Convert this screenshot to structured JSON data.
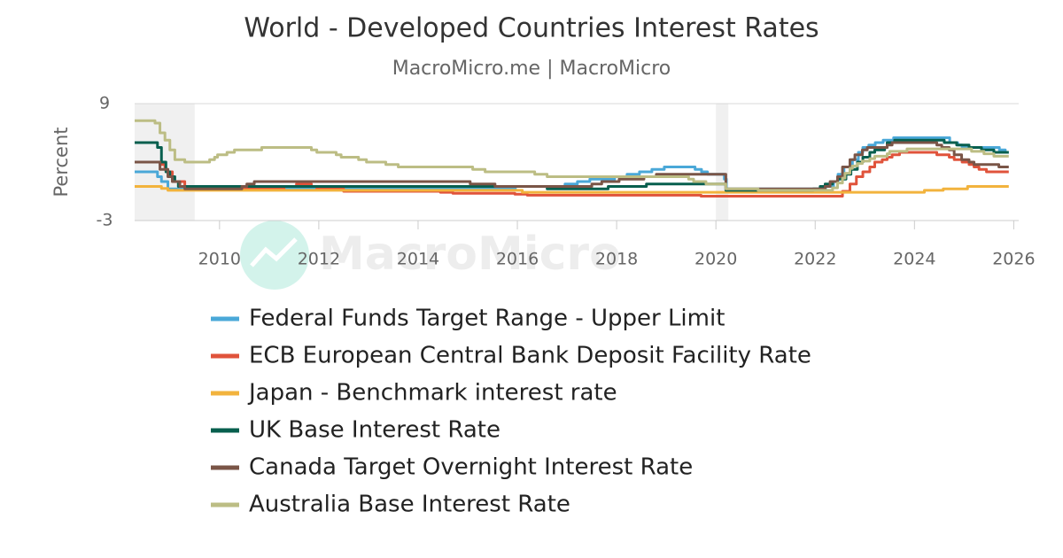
{
  "chart_data": {
    "type": "line",
    "step": true,
    "title": "World - Developed Countries Interest Rates",
    "subtitle": "MacroMicro.me | MacroMicro",
    "watermark": "MacroMicro",
    "y_label": "Percent",
    "xlim": [
      2008.29,
      2026.1
    ],
    "ylim": [
      -3,
      9
    ],
    "yticks": [
      -3,
      9
    ],
    "xticks": [
      2010,
      2012,
      2014,
      2016,
      2018,
      2020,
      2022,
      2024,
      2026
    ],
    "shaded_periods": [
      [
        2008.29,
        2009.5
      ],
      [
        2020.0,
        2020.25
      ]
    ],
    "grid": true,
    "legend": "bottom",
    "series": [
      {
        "name": "Federal Funds Target Range - Upper Limit",
        "color": "#4aa8d8",
        "x": [
          2008.29,
          2008.75,
          2008.83,
          2008.96,
          2015.96,
          2016.96,
          2017.21,
          2017.46,
          2017.96,
          2018.21,
          2018.46,
          2018.71,
          2018.96,
          2019.58,
          2019.71,
          2019.83,
          2020.17,
          2020.21,
          2022.21,
          2022.37,
          2022.46,
          2022.58,
          2022.75,
          2022.87,
          2022.96,
          2023.08,
          2023.21,
          2023.37,
          2023.58,
          2024.71,
          2024.87,
          2024.96,
          2025.71,
          2025.83,
          2025.9
        ],
        "values": [
          2.0,
          1.5,
          1.0,
          0.25,
          0.5,
          0.75,
          1.0,
          1.25,
          1.5,
          1.75,
          2.0,
          2.25,
          2.5,
          2.25,
          2.0,
          1.75,
          1.25,
          0.25,
          0.5,
          1.0,
          1.75,
          2.5,
          3.25,
          4.0,
          4.5,
          4.75,
          5.0,
          5.25,
          5.5,
          5.0,
          4.75,
          4.5,
          4.25,
          4.0,
          4.0
        ]
      },
      {
        "name": "ECB European Central Bank Deposit Facility Rate",
        "color": "#e0533b",
        "x": [
          2008.29,
          2008.8,
          2008.9,
          2008.96,
          2009.05,
          2009.3,
          2009.37,
          2011.3,
          2011.55,
          2011.85,
          2011.96,
          2012.5,
          2014.45,
          2014.7,
          2015.95,
          2016.2,
          2019.7,
          2022.55,
          2022.7,
          2022.83,
          2022.96,
          2023.1,
          2023.2,
          2023.35,
          2023.45,
          2023.55,
          2023.7,
          2024.45,
          2024.7,
          2024.8,
          2024.96,
          2025.1,
          2025.2,
          2025.3,
          2025.45,
          2025.9
        ],
        "values": [
          3.0,
          2.75,
          2.25,
          2.0,
          1.0,
          0.5,
          0.25,
          0.5,
          0.75,
          0.5,
          0.25,
          0,
          -0.1,
          -0.2,
          -0.3,
          -0.4,
          -0.5,
          0,
          0.75,
          1.5,
          2.0,
          2.5,
          3.0,
          3.25,
          3.5,
          3.75,
          4.0,
          3.75,
          3.5,
          3.25,
          3.0,
          2.75,
          2.5,
          2.25,
          2.0,
          2.0
        ]
      },
      {
        "name": "Japan - Benchmark interest rate",
        "color": "#f2b33d",
        "x": [
          2008.29,
          2008.83,
          2008.96,
          2016.1,
          2024.2,
          2024.58,
          2025.07,
          2025.9
        ],
        "values": [
          0.5,
          0.3,
          0.1,
          -0.1,
          0.1,
          0.25,
          0.5,
          0.5
        ]
      },
      {
        "name": "UK Base Interest Rate",
        "color": "#075f4e",
        "x": [
          2008.29,
          2008.75,
          2008.83,
          2008.92,
          2009.0,
          2009.1,
          2009.17,
          2016.6,
          2017.83,
          2018.6,
          2020.2,
          2021.96,
          2022.1,
          2022.2,
          2022.35,
          2022.45,
          2022.62,
          2022.72,
          2022.85,
          2022.96,
          2023.1,
          2023.2,
          2023.4,
          2023.45,
          2023.6,
          2024.6,
          2024.85,
          2025.1,
          2025.35,
          2025.6,
          2025.9
        ],
        "values": [
          5.0,
          4.5,
          3.0,
          2.0,
          1.5,
          1.0,
          0.5,
          0.25,
          0.5,
          0.75,
          0.1,
          0.25,
          0.5,
          0.75,
          1.0,
          1.25,
          1.75,
          2.25,
          3.0,
          3.5,
          4.0,
          4.25,
          4.5,
          5.0,
          5.25,
          5.0,
          4.75,
          4.5,
          4.25,
          4.0,
          4.0
        ]
      },
      {
        "name": "Canada Target Overnight Interest Rate",
        "color": "#7a5547",
        "x": [
          2008.29,
          2008.8,
          2008.96,
          2009.05,
          2009.2,
          2009.3,
          2010.45,
          2010.55,
          2010.7,
          2015.05,
          2015.55,
          2017.5,
          2017.7,
          2018.05,
          2018.55,
          2018.8,
          2020.2,
          2022.2,
          2022.3,
          2022.45,
          2022.55,
          2022.7,
          2022.8,
          2022.95,
          2023.05,
          2023.45,
          2023.55,
          2024.45,
          2024.55,
          2024.7,
          2024.8,
          2024.95,
          2025.1,
          2025.2,
          2025.7,
          2025.9
        ],
        "values": [
          3.0,
          2.25,
          1.5,
          1.0,
          0.5,
          0.25,
          0.5,
          0.75,
          1.0,
          0.75,
          0.5,
          0.75,
          1.0,
          1.25,
          1.5,
          1.75,
          0.25,
          0.5,
          1.0,
          1.5,
          2.5,
          3.25,
          3.75,
          4.25,
          4.5,
          4.75,
          5.0,
          4.75,
          4.5,
          4.25,
          3.75,
          3.25,
          3.0,
          2.75,
          2.5,
          2.5
        ]
      },
      {
        "name": "Australia Base Interest Rate",
        "color": "#bcbd84",
        "x": [
          2008.29,
          2008.7,
          2008.8,
          2008.9,
          2009.0,
          2009.1,
          2009.3,
          2009.8,
          2009.9,
          2009.96,
          2010.15,
          2010.3,
          2010.85,
          2011.85,
          2011.96,
          2012.35,
          2012.45,
          2012.8,
          2012.96,
          2013.35,
          2013.6,
          2015.1,
          2015.35,
          2016.35,
          2016.6,
          2019.45,
          2019.55,
          2019.8,
          2020.2,
          2020.85,
          2022.35,
          2022.45,
          2022.55,
          2022.6,
          2022.7,
          2022.75,
          2022.85,
          2022.95,
          2023.1,
          2023.2,
          2023.45,
          2023.5,
          2023.85,
          2025.15,
          2025.4,
          2025.6,
          2025.9
        ],
        "values": [
          7.25,
          7.0,
          6.0,
          5.25,
          4.25,
          3.25,
          3.0,
          3.25,
          3.5,
          3.75,
          4.0,
          4.25,
          4.5,
          4.25,
          4.0,
          3.75,
          3.5,
          3.25,
          3.0,
          2.75,
          2.5,
          2.25,
          2.0,
          1.75,
          1.5,
          1.25,
          1.0,
          0.75,
          0.25,
          0.1,
          0.35,
          0.85,
          1.35,
          1.85,
          2.35,
          2.6,
          2.85,
          3.1,
          3.35,
          3.6,
          3.85,
          4.1,
          4.35,
          4.1,
          3.85,
          3.6,
          3.6
        ]
      }
    ]
  }
}
